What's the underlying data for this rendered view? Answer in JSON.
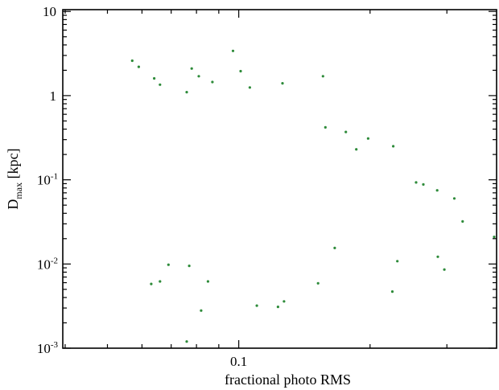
{
  "chart_data": {
    "type": "scatter",
    "xlabel": "fractional photo RMS",
    "ylabel": {
      "main": "D",
      "sub": "max",
      "unit": " [kpc]"
    },
    "x_scale": "log",
    "y_scale": "log",
    "xlim": [
      0.0395,
      0.39
    ],
    "ylim": [
      0.001,
      10.5
    ],
    "x_ticks": [
      {
        "value": 0.1,
        "label": "0.1"
      }
    ],
    "y_ticks": [
      {
        "value": 10,
        "base": "10",
        "exp": ""
      },
      {
        "value": 1,
        "base": "1",
        "exp": ""
      },
      {
        "value": 0.1,
        "base": "10",
        "exp": "-1"
      },
      {
        "value": 0.01,
        "base": "10",
        "exp": "-2"
      },
      {
        "value": 0.001,
        "base": "10",
        "exp": "-3"
      }
    ],
    "marker_color": "#2e8b3a",
    "grid": false,
    "series": [
      {
        "points": [
          [
            0.057,
            2.6
          ],
          [
            0.059,
            2.2
          ],
          [
            0.064,
            1.6
          ],
          [
            0.066,
            1.35
          ],
          [
            0.076,
            1.1
          ],
          [
            0.078,
            2.1
          ],
          [
            0.081,
            1.7
          ],
          [
            0.087,
            1.45
          ],
          [
            0.097,
            3.4
          ],
          [
            0.101,
            1.95
          ],
          [
            0.106,
            1.25
          ],
          [
            0.126,
            1.4
          ],
          [
            0.156,
            1.7
          ],
          [
            0.158,
            0.42
          ],
          [
            0.176,
            0.37
          ],
          [
            0.186,
            0.23
          ],
          [
            0.198,
            0.31
          ],
          [
            0.226,
            0.25
          ],
          [
            0.255,
            0.093
          ],
          [
            0.265,
            0.088
          ],
          [
            0.285,
            0.075
          ],
          [
            0.312,
            0.06
          ],
          [
            0.326,
            0.032
          ],
          [
            0.385,
            0.021
          ],
          [
            0.296,
            0.0086
          ],
          [
            0.225,
            0.0047
          ],
          [
            0.231,
            0.0108
          ],
          [
            0.286,
            0.0122
          ],
          [
            0.166,
            0.0155
          ],
          [
            0.152,
            0.0059
          ],
          [
            0.11,
            0.0032
          ],
          [
            0.127,
            0.0036
          ],
          [
            0.123,
            0.0031
          ],
          [
            0.082,
            0.0028
          ],
          [
            0.066,
            0.0062
          ],
          [
            0.063,
            0.0058
          ],
          [
            0.069,
            0.0098
          ],
          [
            0.076,
            0.0012
          ],
          [
            0.077,
            0.0095
          ],
          [
            0.085,
            0.0062
          ]
        ]
      }
    ]
  }
}
